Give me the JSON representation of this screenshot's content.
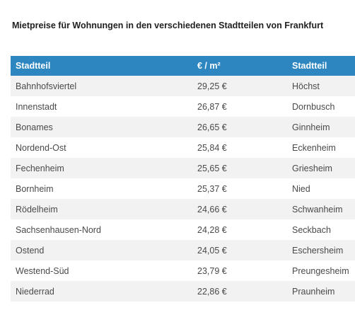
{
  "title": "Mietpreise für Wohnungen in den verschiedenen Stadtteilen von Frankfurt",
  "table": {
    "headers": [
      "Stadtteil",
      "€ / m²",
      "Stadtteil"
    ],
    "rows": [
      [
        "Bahnhofsviertel",
        "29,25 €",
        "Höchst"
      ],
      [
        "Innenstadt",
        "26,87 €",
        "Dornbusch"
      ],
      [
        "Bonames",
        "26,65 €",
        "Ginnheim"
      ],
      [
        "Nordend-Ost",
        "25,84 €",
        "Eckenheim"
      ],
      [
        "Fechenheim",
        "25,65 €",
        "Griesheim"
      ],
      [
        "Bornheim",
        "25,37 €",
        "Nied"
      ],
      [
        "Rödelheim",
        "24,66 €",
        "Schwanheim"
      ],
      [
        "Sachsenhausen-Nord",
        "24,28 €",
        "Seckbach"
      ],
      [
        "Ostend",
        "24,05 €",
        "Eschersheim"
      ],
      [
        "Westend-Süd",
        "23,79 €",
        "Preungesheim"
      ],
      [
        "Niederrad",
        "22,86 €",
        "Praunheim"
      ]
    ]
  },
  "colors": {
    "header_bg": "#2e86c1",
    "stripe_bg": "#f2f2f2"
  }
}
